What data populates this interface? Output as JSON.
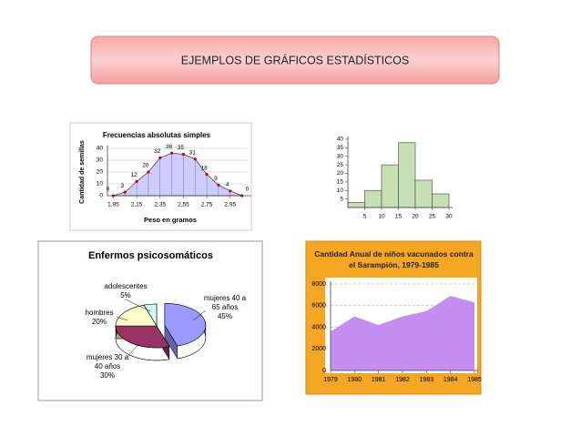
{
  "title": "EJEMPLOS DE GRÁFICOS ESTADÍSTICOS",
  "chart_data": [
    {
      "type": "area",
      "title": "Frecuencias absolutas simples",
      "xlabel": "Peso en gramos",
      "ylabel": "Cantidad de semillas",
      "x": [
        1.95,
        2.05,
        2.15,
        2.25,
        2.35,
        2.45,
        2.55,
        2.65,
        2.75,
        2.85,
        2.95,
        3.05
      ],
      "values": [
        0,
        3,
        12,
        20,
        32,
        36,
        35,
        31,
        18,
        9,
        4,
        0
      ],
      "color": "#ccccff",
      "marker_color": "#cc0000",
      "xlim": [
        1.9,
        3.1
      ],
      "xticks": [
        {
          "value": 1.95,
          "label": "1,95"
        },
        {
          "value": 2.15,
          "label": "2,15"
        },
        {
          "value": 2.35,
          "label": "2,35"
        },
        {
          "value": 2.55,
          "label": "2,55"
        },
        {
          "value": 2.75,
          "label": "2,75"
        },
        {
          "value": 2.95,
          "label": "2,95"
        }
      ],
      "ylim": [
        0,
        40
      ],
      "yticks": [
        0,
        10,
        20,
        30,
        40
      ],
      "grid": true
    },
    {
      "type": "histogram",
      "bins": [
        0,
        5,
        10,
        15,
        20,
        25,
        30
      ],
      "values": [
        3,
        10,
        25,
        38,
        16,
        8
      ],
      "color": "#c6e0b4",
      "xlim": [
        0,
        30
      ],
      "xticks": [
        5,
        10,
        15,
        20,
        25,
        30
      ],
      "ylim": [
        0,
        40
      ],
      "yticks": [
        5,
        10,
        15,
        20,
        25,
        30,
        35,
        40
      ]
    },
    {
      "type": "pie",
      "title": "Enfermos psicosomáticos",
      "categories": [
        "mujeres 40 a 65 años",
        "mujeres 30 a 40 años",
        "hombres",
        "adolescentes"
      ],
      "values": [
        45,
        30,
        20,
        5
      ],
      "value_labels": [
        "45%",
        "30%",
        "20%",
        "5%"
      ],
      "colors": [
        "#9999ff",
        "#993366",
        "#ffffcc",
        "#ccffff"
      ]
    },
    {
      "type": "area",
      "title": "Cantidad Anual de niños vacunados contra el Sarampión, 1979-1985",
      "x": [
        1979,
        1980,
        1981,
        1982,
        1983,
        1984,
        1985
      ],
      "values": [
        3600,
        5000,
        4200,
        5000,
        5500,
        6900,
        6300
      ],
      "color": "#c38df2",
      "background": "#f5a623",
      "xlim": [
        1979,
        1985
      ],
      "xticks": [
        1979,
        1980,
        1981,
        1982,
        1983,
        1984,
        1985
      ],
      "ylim": [
        0,
        8000
      ],
      "yticks": [
        0,
        2000,
        4000,
        6000,
        8000
      ],
      "grid": true
    }
  ]
}
